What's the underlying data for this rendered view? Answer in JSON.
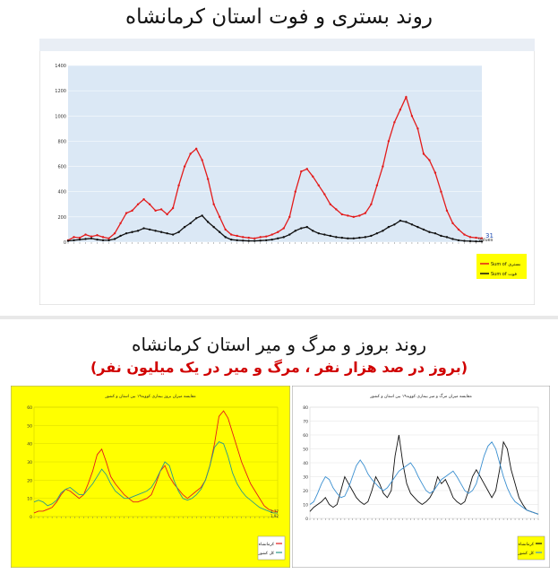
{
  "titles": {
    "top": "روند بستری و فوت استان کرمانشاه",
    "bottom": "روند بروز و مرگ و میر استان کرمانشاه",
    "bottom_sub": "(بروز در صد هزار نفر ، مرگ و میر در یک میلیون نفر)"
  },
  "chart_data": [
    {
      "type": "line",
      "left_axis_ticks": [
        "0",
        "200",
        "400",
        "600",
        "800",
        "1000",
        "1200",
        "1400"
      ],
      "ylim": [
        0,
        1400
      ],
      "last_value_label": "31",
      "legend_title": "Values",
      "series": [
        {
          "name": "Sum of بستری",
          "color": "#e31b1b",
          "values": [
            15,
            40,
            35,
            60,
            45,
            55,
            40,
            30,
            70,
            150,
            230,
            250,
            300,
            340,
            300,
            250,
            260,
            220,
            270,
            450,
            600,
            700,
            740,
            650,
            500,
            300,
            200,
            100,
            60,
            50,
            40,
            35,
            30,
            40,
            45,
            60,
            80,
            110,
            200,
            400,
            560,
            580,
            520,
            450,
            380,
            300,
            260,
            220,
            210,
            200,
            210,
            230,
            300,
            450,
            600,
            800,
            950,
            1050,
            1150,
            1000,
            900,
            700,
            650,
            550,
            400,
            250,
            150,
            100,
            60,
            40,
            35,
            31
          ]
        },
        {
          "name": "Sum of فوت",
          "color": "#111111",
          "values": [
            10,
            15,
            20,
            25,
            30,
            20,
            15,
            15,
            25,
            50,
            70,
            80,
            90,
            110,
            100,
            90,
            80,
            70,
            60,
            80,
            120,
            150,
            190,
            210,
            160,
            120,
            80,
            40,
            20,
            15,
            12,
            10,
            10,
            12,
            15,
            20,
            30,
            40,
            60,
            90,
            110,
            120,
            90,
            70,
            60,
            50,
            40,
            35,
            30,
            30,
            35,
            40,
            50,
            70,
            90,
            120,
            140,
            170,
            160,
            140,
            120,
            100,
            80,
            70,
            50,
            40,
            25,
            15,
            10,
            8,
            6,
            5
          ]
        }
      ]
    },
    {
      "type": "line",
      "title": "مقایسه میزان بروز بیماری کووید۱۹ بین استان و کشور",
      "left_axis_ticks": [
        "0",
        "10",
        "20",
        "30",
        "40",
        "50",
        "60"
      ],
      "ylim": [
        0,
        60
      ],
      "end_labels": [
        "2.77",
        "1.92"
      ],
      "legend": [
        "کرمانشاه",
        "کل کشور"
      ],
      "series": [
        {
          "name": "کرمانشاه",
          "color": "#e31b1b",
          "values": [
            2,
            3,
            3,
            4,
            5,
            8,
            12,
            15,
            14,
            12,
            10,
            12,
            18,
            25,
            34,
            37,
            30,
            22,
            18,
            15,
            12,
            10,
            8,
            8,
            9,
            10,
            12,
            18,
            25,
            28,
            22,
            18,
            15,
            12,
            10,
            12,
            14,
            16,
            20,
            28,
            40,
            55,
            58,
            54,
            46,
            38,
            30,
            24,
            18,
            14,
            10,
            6,
            4,
            3,
            2.77
          ]
        },
        {
          "name": "کل کشور",
          "color": "#2a9a8a",
          "values": [
            8,
            9,
            8,
            6,
            7,
            9,
            13,
            15,
            16,
            14,
            12,
            12,
            15,
            18,
            22,
            26,
            23,
            18,
            14,
            12,
            10,
            10,
            11,
            12,
            13,
            14,
            16,
            20,
            25,
            30,
            28,
            20,
            14,
            10,
            9,
            10,
            12,
            15,
            20,
            28,
            38,
            41,
            40,
            33,
            24,
            18,
            14,
            11,
            9,
            7,
            5,
            4,
            3,
            2,
            1.92
          ]
        }
      ]
    },
    {
      "type": "line",
      "title": "مقایسه میزان مرگ و میر بیماری کووید۱۹ بین استان و کشور",
      "left_axis_ticks": [
        "0",
        "10",
        "20",
        "30",
        "40",
        "50",
        "60",
        "70",
        "80"
      ],
      "ylim": [
        0,
        80
      ],
      "legend": [
        "کرمانشاه",
        "کل کشور"
      ],
      "series": [
        {
          "name": "کرمانشاه",
          "color": "#111111",
          "values": [
            5,
            8,
            10,
            12,
            15,
            10,
            8,
            10,
            20,
            30,
            25,
            20,
            15,
            12,
            10,
            12,
            20,
            30,
            25,
            18,
            15,
            20,
            45,
            60,
            40,
            25,
            18,
            15,
            12,
            10,
            12,
            15,
            20,
            30,
            25,
            28,
            22,
            15,
            12,
            10,
            12,
            20,
            30,
            35,
            30,
            25,
            20,
            15,
            20,
            35,
            55,
            50,
            35,
            25,
            15,
            10,
            6,
            5,
            4,
            3
          ]
        },
        {
          "name": "کل کشور",
          "color": "#3a8fd0",
          "values": [
            10,
            12,
            18,
            25,
            30,
            28,
            22,
            18,
            15,
            16,
            22,
            30,
            38,
            42,
            38,
            32,
            28,
            25,
            22,
            20,
            22,
            26,
            30,
            34,
            36,
            38,
            40,
            36,
            30,
            25,
            20,
            18,
            20,
            24,
            28,
            30,
            32,
            34,
            30,
            25,
            20,
            18,
            20,
            25,
            35,
            45,
            52,
            55,
            50,
            40,
            30,
            22,
            16,
            12,
            10,
            8,
            6,
            5,
            4,
            3
          ]
        }
      ]
    }
  ]
}
